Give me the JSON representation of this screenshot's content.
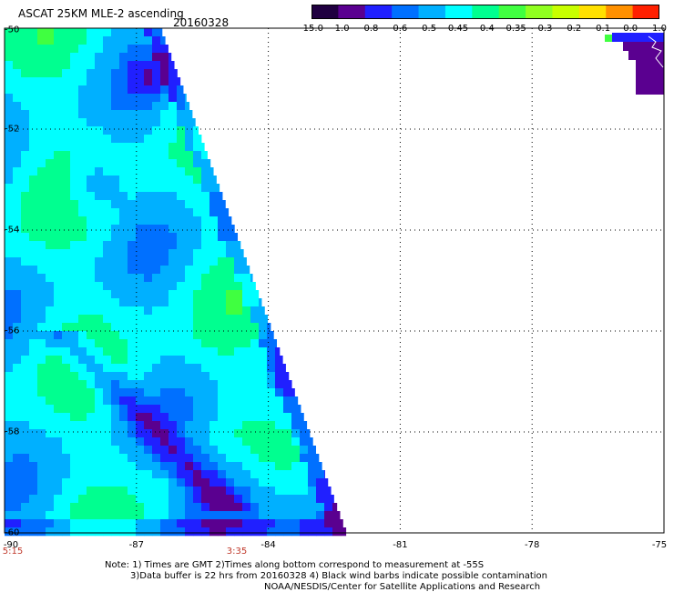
{
  "title": "ASCAT 25KM MLE-2 ascending",
  "date": "20160328",
  "colorbar": {
    "labels": [
      "-15.0",
      "-1.0",
      "-0.8",
      "-0.6",
      "-0.5",
      "-0.45",
      "-0.4",
      "-0.35",
      "-0.3",
      "-0.2",
      "-0.1",
      "0.0",
      "1.0"
    ],
    "colors": [
      "#200040",
      "#5a0090",
      "#2020ff",
      "#0070ff",
      "#00b0ff",
      "#00ffff",
      "#00ff90",
      "#40ff40",
      "#90ff20",
      "#c8ff00",
      "#ffe000",
      "#ff9000",
      "#ff2000"
    ]
  },
  "lat_labels": [
    "-50",
    "-52",
    "-54",
    "-56",
    "-58",
    "-60"
  ],
  "lon_labels": [
    "-90",
    "-87",
    "-84",
    "-81",
    "-78",
    "-75"
  ],
  "time_labels": [
    "5:15",
    "3:35"
  ],
  "notes": [
    "Note: 1) Times are GMT 2)Times along bottom correspond to measurement at -55S",
    "3)Data buffer is 22 hrs from 20160328 4) Black wind barbs indicate possible contamination",
    "NOAA/NESDIS/Center for Satellite Applications and Research"
  ],
  "grid": true
}
